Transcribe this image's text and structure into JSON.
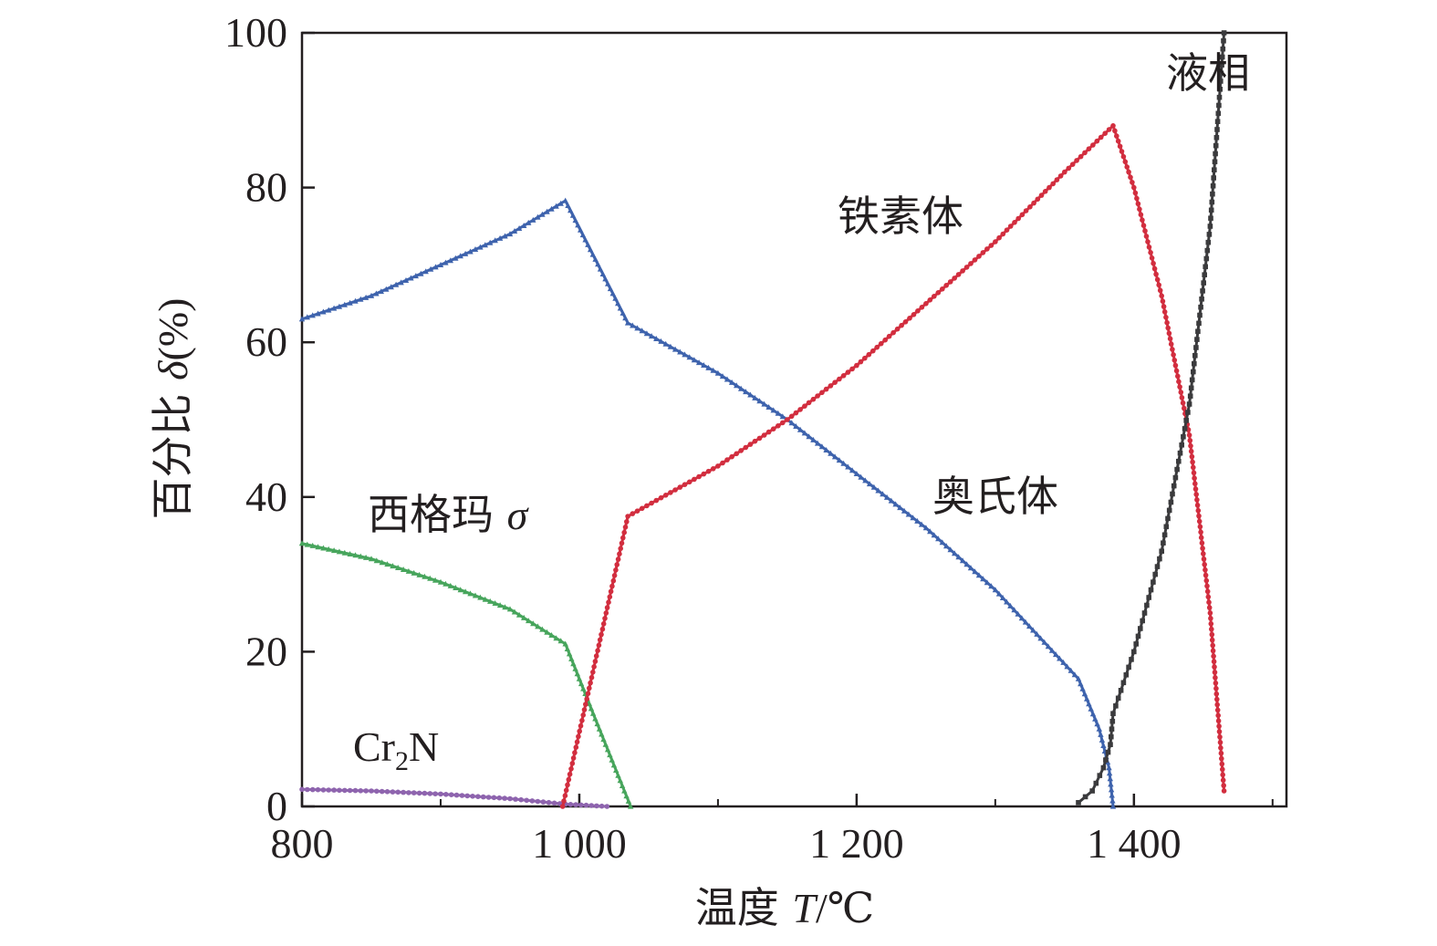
{
  "chart_data": {
    "type": "line",
    "title": "",
    "xlabel": {
      "text": "温度",
      "symbol": "T",
      "unit": "/℃"
    },
    "ylabel": {
      "text": "百分比",
      "symbol": "δ",
      "unit": "(%)"
    },
    "xlim": [
      800,
      1510
    ],
    "ylim": [
      0,
      100
    ],
    "x_ticks": [
      {
        "value": 800,
        "label": "800"
      },
      {
        "value": 1000,
        "label": "1 000"
      },
      {
        "value": 1200,
        "label": "1 200"
      },
      {
        "value": 1400,
        "label": "1 400"
      }
    ],
    "x_minor_ticks": [
      900,
      1100,
      1300,
      1500
    ],
    "y_ticks": [
      {
        "value": 0,
        "label": "0"
      },
      {
        "value": 20,
        "label": "20"
      },
      {
        "value": 40,
        "label": "40"
      },
      {
        "value": 60,
        "label": "60"
      },
      {
        "value": 80,
        "label": "80"
      },
      {
        "value": 100,
        "label": "100"
      }
    ],
    "grid": false,
    "series": [
      {
        "key": "austenite",
        "name": "奥氏体",
        "color": "#3e63ad",
        "marker": "triangle",
        "x": [
          800,
          850,
          900,
          950,
          990,
          1035,
          1100,
          1150,
          1200,
          1250,
          1300,
          1360,
          1375,
          1382,
          1385
        ],
        "y": [
          63,
          66,
          70,
          74,
          78.3,
          62.5,
          56,
          50,
          43,
          36,
          28,
          16.5,
          10,
          5,
          0
        ]
      },
      {
        "key": "ferrite",
        "name": "铁素体",
        "color": "#d22e3f",
        "marker": "circle",
        "x": [
          988,
          1035,
          1100,
          1150,
          1200,
          1250,
          1300,
          1350,
          1385,
          1400,
          1420,
          1440,
          1455,
          1465
        ],
        "y": [
          0,
          37.5,
          44,
          50,
          57,
          65,
          73,
          82,
          88,
          80,
          66,
          48,
          25,
          2
        ]
      },
      {
        "key": "sigma",
        "name": "西格玛",
        "symbol": "σ",
        "color": "#47a55c",
        "marker": "triangle",
        "x": [
          800,
          850,
          900,
          950,
          990,
          1010,
          1037
        ],
        "y": [
          34,
          32,
          29,
          25.5,
          21,
          12,
          0
        ]
      },
      {
        "key": "cr2n",
        "name": "Cr",
        "subscript": "2",
        "name_suffix": "N",
        "color": "#8e64ae",
        "marker": "circle",
        "x": [
          800,
          850,
          900,
          950,
          990,
          1020
        ],
        "y": [
          2.2,
          2.0,
          1.6,
          1.0,
          0.3,
          0
        ]
      },
      {
        "key": "liquid",
        "name": "液相",
        "color": "#3b3b3d",
        "marker": "square",
        "x": [
          1360,
          1370,
          1378,
          1383,
          1385,
          1400,
          1420,
          1440,
          1455,
          1465
        ],
        "y": [
          0.5,
          2,
          5,
          8,
          12,
          20,
          33,
          52,
          75,
          100
        ]
      }
    ],
    "annotations": [
      {
        "series": "ferrite",
        "text": "铁素体"
      },
      {
        "series": "austenite",
        "text": "奥氏体"
      },
      {
        "series": "liquid",
        "text": "液相"
      },
      {
        "series": "sigma",
        "text": "西格玛 σ"
      },
      {
        "series": "cr2n",
        "text": "Cr2N"
      }
    ]
  }
}
